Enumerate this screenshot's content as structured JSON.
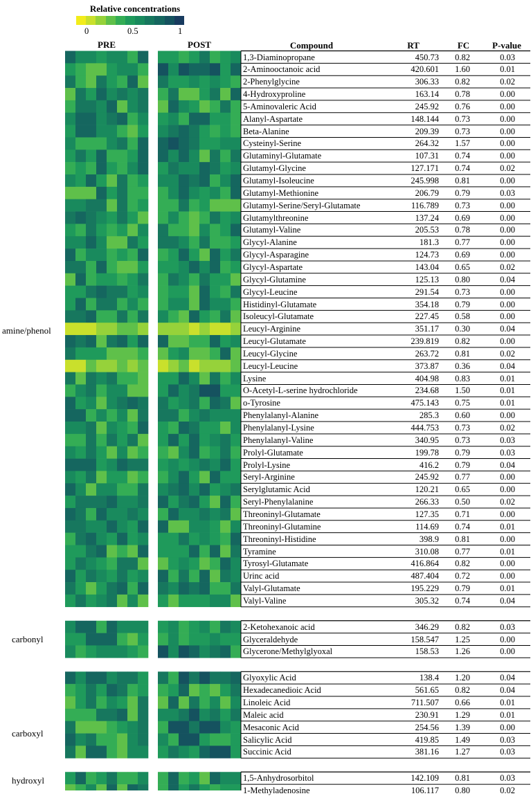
{
  "chart_data": {
    "type": "heatmap",
    "legend": {
      "title": "Relative concentrations",
      "ticks": [
        "0",
        "0.5",
        "1"
      ],
      "colors": [
        "#f2ec1a",
        "#c9e02c",
        "#96d23a",
        "#5fc04a",
        "#34ad55",
        "#1f9a5b",
        "#198a5d",
        "#17775e",
        "#15665f",
        "#15525f",
        "#183b5f"
      ]
    },
    "panels": [
      "PRE",
      "POST"
    ],
    "columns": [
      "Compound",
      "RT",
      "FC",
      "P-value"
    ],
    "groups": [
      {
        "name": "amine/phenol",
        "compounds": [
          {
            "name": "1,3-Diaminopropane",
            "rt": "450.73",
            "fc": "0.82",
            "p": "0.03"
          },
          {
            "name": "2-Aminooctanoic acid",
            "rt": "420.601",
            "fc": "1.60",
            "p": "0.01"
          },
          {
            "name": "2-Phenylglycine",
            "rt": "306.33",
            "fc": "0.82",
            "p": "0.02"
          },
          {
            "name": "4-Hydroxyproline",
            "rt": "163.14",
            "fc": "0.78",
            "p": "0.00"
          },
          {
            "name": "5-Aminovaleric Acid",
            "rt": "245.92",
            "fc": "0.76",
            "p": "0.00"
          },
          {
            "name": "Alanyl-Aspartate",
            "rt": "148.144",
            "fc": "0.73",
            "p": "0.00"
          },
          {
            "name": "Beta-Alanine",
            "rt": "209.39",
            "fc": "0.73",
            "p": "0.00"
          },
          {
            "name": "Cysteinyl-Serine",
            "rt": "264.32",
            "fc": "1.57",
            "p": "0.00"
          },
          {
            "name": "Glutaminyl-Glutamate",
            "rt": "107.31",
            "fc": "0.74",
            "p": "0.00"
          },
          {
            "name": "Glutamyl-Glycine",
            "rt": "127.171",
            "fc": "0.74",
            "p": "0.02"
          },
          {
            "name": "Glutamyl-Isoleucine",
            "rt": "245.998",
            "fc": "0.81",
            "p": "0.00"
          },
          {
            "name": "Glutamyl-Methionine",
            "rt": "206.79",
            "fc": "0.79",
            "p": "0.03"
          },
          {
            "name": "Glutamyl-Serine/Seryl-Glutamate",
            "rt": "116.789",
            "fc": "0.73",
            "p": "0.00"
          },
          {
            "name": "Glutamylthreonine",
            "rt": "137.24",
            "fc": "0.69",
            "p": "0.00"
          },
          {
            "name": "Glutamyl-Valine",
            "rt": "205.53",
            "fc": "0.78",
            "p": "0.00"
          },
          {
            "name": "Glycyl-Alanine",
            "rt": "181.3",
            "fc": "0.77",
            "p": "0.00"
          },
          {
            "name": "Glycyl-Asparagine",
            "rt": "124.73",
            "fc": "0.69",
            "p": "0.00"
          },
          {
            "name": "Glycyl-Aspartate",
            "rt": "143.04",
            "fc": "0.65",
            "p": "0.02"
          },
          {
            "name": "Glycyl-Glutamine",
            "rt": "125.13",
            "fc": "0.80",
            "p": "0.04"
          },
          {
            "name": "Glycyl-Leucine",
            "rt": "291.54",
            "fc": "0.73",
            "p": "0.00"
          },
          {
            "name": "Histidinyl-Glutamate",
            "rt": "354.18",
            "fc": "0.79",
            "p": "0.00"
          },
          {
            "name": "Isoleucyl-Glutamate",
            "rt": "227.45",
            "fc": "0.58",
            "p": "0.00"
          },
          {
            "name": "Leucyl-Arginine",
            "rt": "351.17",
            "fc": "0.30",
            "p": "0.04"
          },
          {
            "name": "Leucyl-Glutamate",
            "rt": "239.819",
            "fc": "0.82",
            "p": "0.00"
          },
          {
            "name": "Leucyl-Glycine",
            "rt": "263.72",
            "fc": "0.81",
            "p": "0.02"
          },
          {
            "name": "Leucyl-Leucine",
            "rt": "373.87",
            "fc": "0.36",
            "p": "0.04"
          },
          {
            "name": "Lysine",
            "rt": "404.98",
            "fc": "0.83",
            "p": "0.01"
          },
          {
            "name": "O-Acetyl-L-serine hydrochloride",
            "rt": "234.68",
            "fc": "1.50",
            "p": "0.01"
          },
          {
            "name": "o-Tyrosine",
            "rt": "475.143",
            "fc": "0.75",
            "p": "0.01"
          },
          {
            "name": "Phenylalanyl-Alanine",
            "rt": "285.3",
            "fc": "0.60",
            "p": "0.00"
          },
          {
            "name": "Phenylalanyl-Lysine",
            "rt": "444.753",
            "fc": "0.73",
            "p": "0.02"
          },
          {
            "name": "Phenylalanyl-Valine",
            "rt": "340.95",
            "fc": "0.73",
            "p": "0.03"
          },
          {
            "name": "Prolyl-Glutamate",
            "rt": "199.78",
            "fc": "0.79",
            "p": "0.03"
          },
          {
            "name": "Prolyl-Lysine",
            "rt": "416.2",
            "fc": "0.79",
            "p": "0.04"
          },
          {
            "name": "Seryl-Arginine",
            "rt": "245.92",
            "fc": "0.77",
            "p": "0.00"
          },
          {
            "name": "Serylglutamic Acid",
            "rt": "120.21",
            "fc": "0.65",
            "p": "0.00"
          },
          {
            "name": "Seryl-Phenylalanine",
            "rt": "266.33",
            "fc": "0.50",
            "p": "0.02"
          },
          {
            "name": "Threoninyl-Glutamate",
            "rt": "127.35",
            "fc": "0.71",
            "p": "0.00"
          },
          {
            "name": "Threoninyl-Glutamine",
            "rt": "114.69",
            "fc": "0.74",
            "p": "0.01"
          },
          {
            "name": "Threoninyl-Histidine",
            "rt": "398.9",
            "fc": "0.81",
            "p": "0.00"
          },
          {
            "name": "Tyramine",
            "rt": "310.08",
            "fc": "0.77",
            "p": "0.01"
          },
          {
            "name": "Tyrosyl-Glutamate",
            "rt": "416.864",
            "fc": "0.82",
            "p": "0.00"
          },
          {
            "name": "Urinc acid",
            "rt": "487.404",
            "fc": "0.72",
            "p": "0.00"
          },
          {
            "name": "Valyl-Glutamate",
            "rt": "195.229",
            "fc": "0.79",
            "p": "0.01"
          },
          {
            "name": "Valyl-Valine",
            "rt": "305.32",
            "fc": "0.74",
            "p": "0.04"
          }
        ]
      },
      {
        "name": "carbonyl",
        "compounds": [
          {
            "name": "2-Ketohexanoic acid",
            "rt": "346.29",
            "fc": "0.82",
            "p": "0.03"
          },
          {
            "name": "Glyceraldehyde",
            "rt": "158.547",
            "fc": "1.25",
            "p": "0.00"
          },
          {
            "name": "Glycerone/Methylglyoxal",
            "rt": "158.53",
            "fc": "1.26",
            "p": "0.00"
          }
        ]
      },
      {
        "name": "carboxyl",
        "compounds": [
          {
            "name": "Glyoxylic Acid",
            "rt": "138.4",
            "fc": "1.20",
            "p": "0.04"
          },
          {
            "name": "Hexadecanedioic Acid",
            "rt": "561.65",
            "fc": "0.82",
            "p": "0.04"
          },
          {
            "name": "Linoleic Acid",
            "rt": "711.507",
            "fc": "0.66",
            "p": "0.01"
          },
          {
            "name": "Maleic acid",
            "rt": "230.91",
            "fc": "1.29",
            "p": "0.01"
          },
          {
            "name": "Mesaconic Acid",
            "rt": "254.56",
            "fc": "1.39",
            "p": "0.00"
          },
          {
            "name": "Salicylic Acid",
            "rt": "419.85",
            "fc": "1.49",
            "p": "0.03"
          },
          {
            "name": "Succinic Acid",
            "rt": "381.16",
            "fc": "1.27",
            "p": "0.03"
          }
        ]
      },
      {
        "name": "hydroxyl",
        "compounds": [
          {
            "name": "1,5-Anhydrosorbitol",
            "rt": "142.109",
            "fc": "0.81",
            "p": "0.03"
          },
          {
            "name": "1-Methyladenosine",
            "rt": "106.117",
            "fc": "0.80",
            "p": "0.02"
          }
        ]
      }
    ]
  }
}
